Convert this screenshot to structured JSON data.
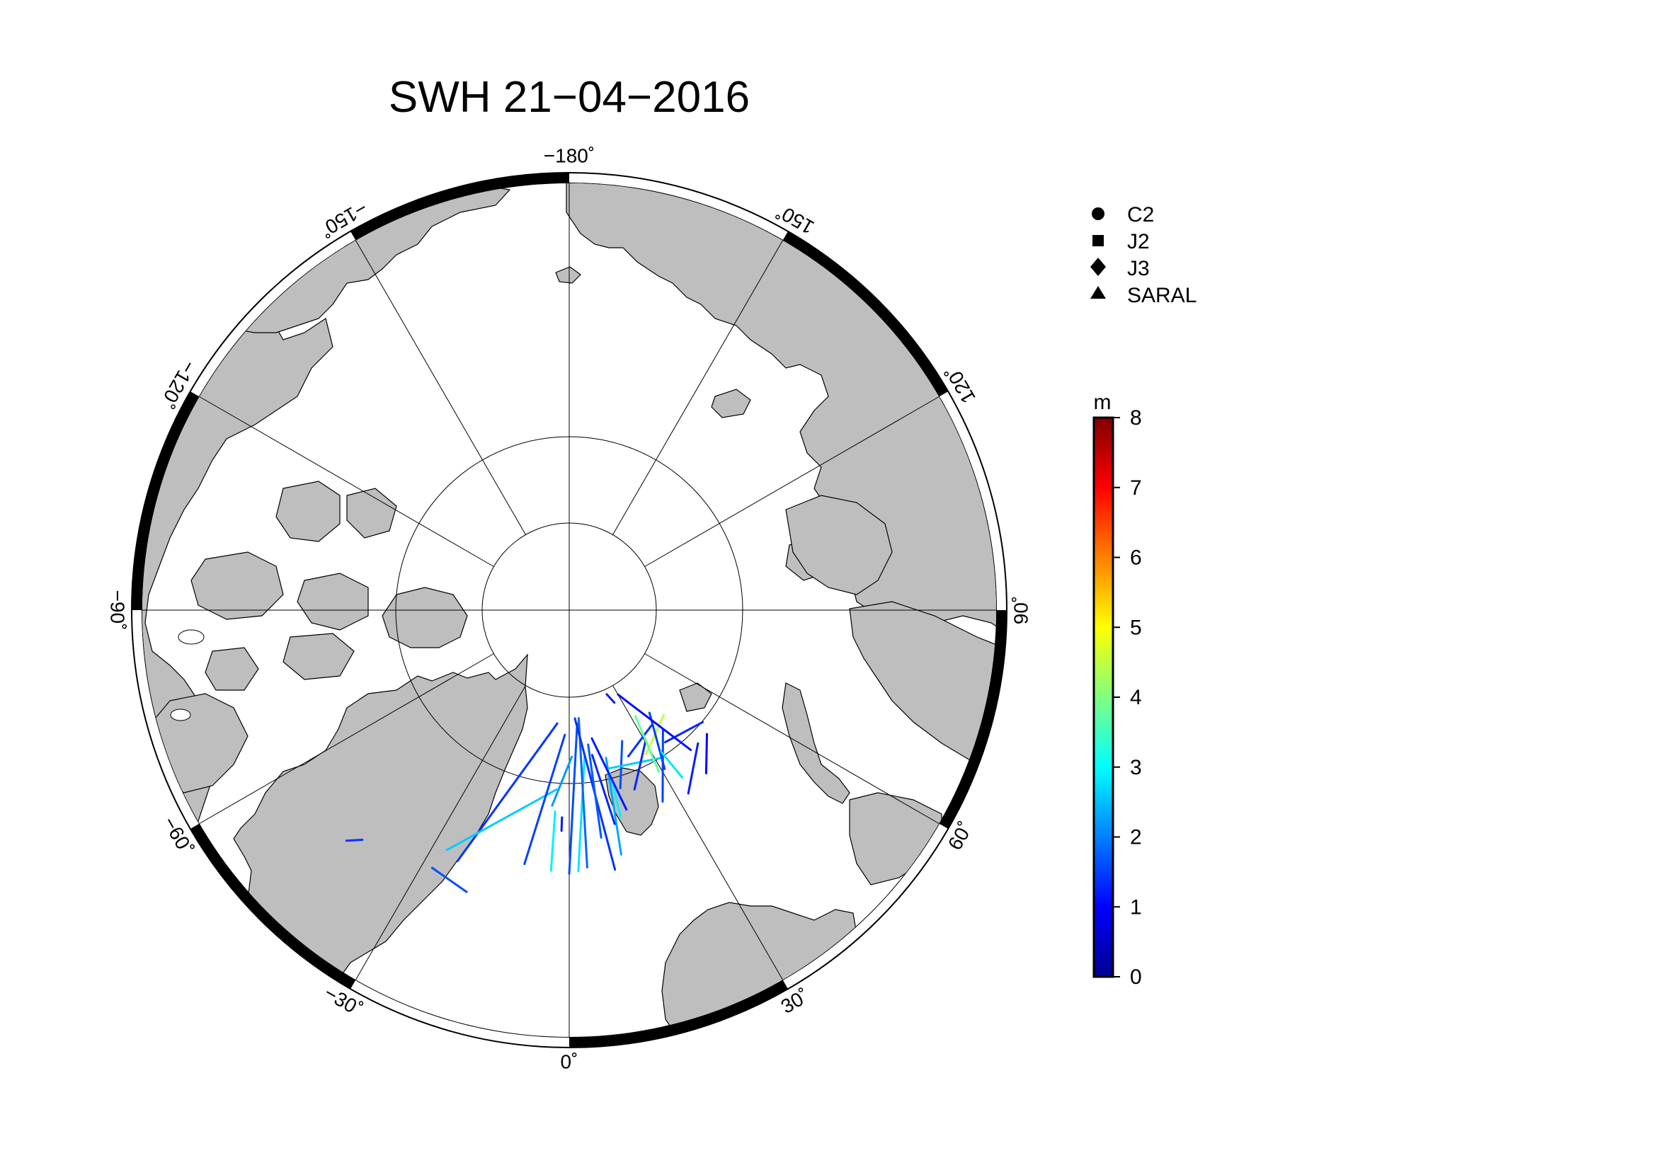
{
  "title": "SWH 21−04−2016",
  "map": {
    "projection": "north-polar-stereographic",
    "ocean_color": "#ffffff",
    "land_color": "#bebebe",
    "latitude_circles": [
      60,
      70,
      80
    ],
    "meridians": [
      0,
      30,
      60,
      90,
      120,
      150,
      180,
      -150,
      -120,
      -90,
      -60,
      -30
    ],
    "longitude_labels": [
      {
        "lon": -180,
        "text": "−180˚"
      },
      {
        "lon": 150,
        "text": "150˚"
      },
      {
        "lon": 120,
        "text": "120˚"
      },
      {
        "lon": 90,
        "text": "90˚"
      },
      {
        "lon": 60,
        "text": "60˚"
      },
      {
        "lon": 30,
        "text": "30˚"
      },
      {
        "lon": 0,
        "text": "0˚"
      },
      {
        "lon": -30,
        "text": "−30˚"
      },
      {
        "lon": -60,
        "text": "−60˚"
      },
      {
        "lon": -90,
        "text": "−90˚"
      },
      {
        "lon": -120,
        "text": "−120˚"
      },
      {
        "lon": -150,
        "text": "−150˚"
      }
    ]
  },
  "legend": {
    "items": [
      {
        "symbol": "circle",
        "label": "C2"
      },
      {
        "symbol": "square",
        "label": "J2"
      },
      {
        "symbol": "diamond",
        "label": "J3"
      },
      {
        "symbol": "triangle",
        "label": "SARAL"
      }
    ]
  },
  "colorbar": {
    "unit": "m",
    "min": 0,
    "max": 8,
    "tick_labels": [
      "0",
      "1",
      "2",
      "3",
      "4",
      "5",
      "6",
      "7",
      "8"
    ],
    "colormap": [
      "#00008f",
      "#0000ff",
      "#0080ff",
      "#00ffff",
      "#80ff80",
      "#ffff00",
      "#ff8000",
      "#ff0000",
      "#800000"
    ]
  },
  "chart_data": {
    "type": "scatter",
    "title": "SWH 21−04−2016",
    "value_unit": "m",
    "value_range": [
      0,
      8
    ],
    "tracks": [
      {
        "swh": 1.4,
        "from": [
          -24,
          65.0
        ],
        "to": [
          -6,
          79.5
        ]
      },
      {
        "swh": 2.6,
        "from": [
          -27,
          65.5
        ],
        "to": [
          -4,
          73.5
        ]
      },
      {
        "swh": 1.5,
        "from": [
          -10,
          66.5
        ],
        "to": [
          -2,
          78.5
        ]
      },
      {
        "swh": 2.9,
        "from": [
          -4,
          66.2
        ],
        "to": [
          -4,
          71.5
        ]
      },
      {
        "swh": 1.2,
        "from": [
          -2,
          69.8
        ],
        "to": [
          -2,
          71.0
        ]
      },
      {
        "swh": 2.2,
        "from": [
          -5,
          72.0
        ],
        "to": [
          1,
          76.5
        ]
      },
      {
        "swh": 1.6,
        "from": [
          0,
          66.0
        ],
        "to": [
          4,
          79.5
        ]
      },
      {
        "swh": 2.8,
        "from": [
          2,
          66.2
        ],
        "to": [
          6,
          76.5
        ]
      },
      {
        "swh": 1.8,
        "from": [
          4,
          66.5
        ],
        "to": [
          5,
          80.0
        ]
      },
      {
        "swh": 1.4,
        "from": [
          10,
          66.0
        ],
        "to": [
          3,
          80.0
        ]
      },
      {
        "swh": 2.3,
        "from": [
          12,
          67.2
        ],
        "to": [
          14,
          76.0
        ]
      },
      {
        "swh": 1.7,
        "from": [
          8,
          69.0
        ],
        "to": [
          8,
          77.5
        ]
      },
      {
        "swh": 1.3,
        "from": [
          12,
          70.0
        ],
        "to": [
          9,
          76.5
        ]
      },
      {
        "swh": 2.9,
        "from": [
          14,
          70.5
        ],
        "to": [
          14,
          74.5
        ]
      },
      {
        "swh": 1.2,
        "from": [
          16,
          71.0
        ],
        "to": [
          10,
          78.0
        ]
      },
      {
        "swh": 1.6,
        "from": [
          16,
          73.0
        ],
        "to": [
          22,
          77.0
        ]
      },
      {
        "swh": 2.6,
        "from": [
          14,
          75.0
        ],
        "to": [
          32,
          74.0
        ]
      },
      {
        "swh": 1.3,
        "from": [
          20,
          72.5
        ],
        "to": [
          30,
          76.0
        ]
      },
      {
        "swh": 1.5,
        "from": [
          26,
          70.5
        ],
        "to": [
          38,
          76.0
        ]
      },
      {
        "swh": 1.2,
        "from": [
          33,
          70.0
        ],
        "to": [
          44,
          73.0
        ]
      },
      {
        "swh": 1.3,
        "from": [
          36,
          75.0
        ],
        "to": [
          50,
          74.0
        ]
      },
      {
        "swh": 1.4,
        "from": [
          22,
          75.5
        ],
        "to": [
          36,
          77.0
        ]
      },
      {
        "swh": 4.5,
        "from": [
          28,
          75.0
        ],
        "to": [
          42,
          77.0
        ]
      },
      {
        "swh": 3.8,
        "from": [
          29,
          73.0
        ],
        "to": [
          32,
          78.5
        ]
      },
      {
        "swh": 1.5,
        "from": [
          31,
          73.0
        ],
        "to": [
          38,
          78.0
        ]
      },
      {
        "swh": 2.8,
        "from": [
          34,
          71.5
        ],
        "to": [
          33,
          74.5
        ]
      },
      {
        "swh": 1.1,
        "from": [
          41,
          73.0
        ],
        "to": [
          30,
          81.0
        ]
      },
      {
        "swh": 1.0,
        "from": [
          40,
          70.5
        ],
        "to": [
          48,
          73.0
        ]
      },
      {
        "swh": 1.2,
        "from": [
          26,
          80.5
        ],
        "to": [
          24,
          81.5
        ]
      },
      {
        "swh": 1.4,
        "from": [
          -44,
          61.0
        ],
        "to": [
          -42,
          62.0
        ]
      },
      {
        "swh": 1.6,
        "from": [
          -28,
          63.5
        ],
        "to": [
          -20,
          62.8
        ]
      }
    ]
  }
}
